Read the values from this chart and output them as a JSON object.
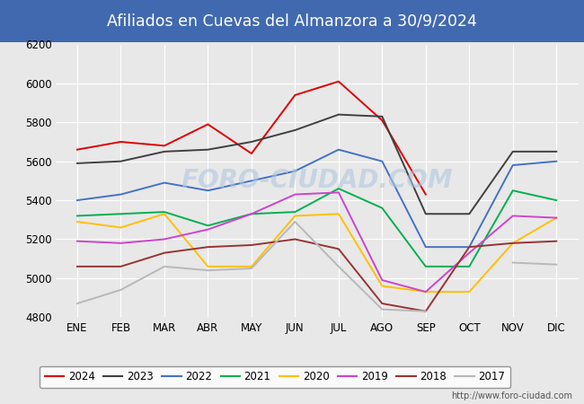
{
  "title": "Afiliados en Cuevas del Almanzora a 30/9/2024",
  "title_bg_color": "#4169b0",
  "title_text_color": "#ffffff",
  "ylim": [
    4800,
    6200
  ],
  "yticks": [
    4800,
    5000,
    5200,
    5400,
    5600,
    5800,
    6000,
    6200
  ],
  "months": [
    "ENE",
    "FEB",
    "MAR",
    "ABR",
    "MAY",
    "JUN",
    "JUL",
    "AGO",
    "SEP",
    "OCT",
    "NOV",
    "DIC"
  ],
  "series": {
    "2024": {
      "color": "#dd0000",
      "data": [
        5660,
        5700,
        5680,
        5790,
        5640,
        5940,
        6010,
        5810,
        5430,
        null,
        null,
        null
      ]
    },
    "2023": {
      "color": "#404040",
      "data": [
        5590,
        5600,
        5650,
        5660,
        5700,
        5760,
        5840,
        5830,
        5330,
        5330,
        5650,
        5650
      ]
    },
    "2022": {
      "color": "#4472c4",
      "data": [
        5400,
        5430,
        5490,
        5450,
        5500,
        5550,
        5660,
        5600,
        5160,
        5160,
        5580,
        5600
      ]
    },
    "2021": {
      "color": "#00b050",
      "data": [
        5320,
        5330,
        5340,
        5270,
        5330,
        5340,
        5460,
        5360,
        5060,
        5060,
        5450,
        5400
      ]
    },
    "2020": {
      "color": "#ffc000",
      "data": [
        5290,
        5260,
        5330,
        5060,
        5060,
        5320,
        5330,
        4960,
        4930,
        4930,
        5180,
        5310
      ]
    },
    "2019": {
      "color": "#cc44cc",
      "data": [
        5190,
        5180,
        5200,
        5250,
        5330,
        5430,
        5440,
        4990,
        4930,
        5130,
        5320,
        5310
      ]
    },
    "2018": {
      "color": "#993333",
      "data": [
        5060,
        5060,
        5130,
        5160,
        5170,
        5200,
        5150,
        4870,
        4830,
        5160,
        5180,
        5190
      ]
    },
    "2017": {
      "color": "#b8b8b8",
      "data": [
        4870,
        4940,
        5060,
        5040,
        5050,
        5290,
        5060,
        4840,
        4830,
        null,
        5080,
        5070
      ]
    }
  },
  "watermark": "FORO-CIUDAD.COM",
  "url": "http://www.foro-ciudad.com",
  "bg_color": "#e8e8e8",
  "plot_bg_color": "#e8e8e8",
  "grid_color": "#ffffff"
}
